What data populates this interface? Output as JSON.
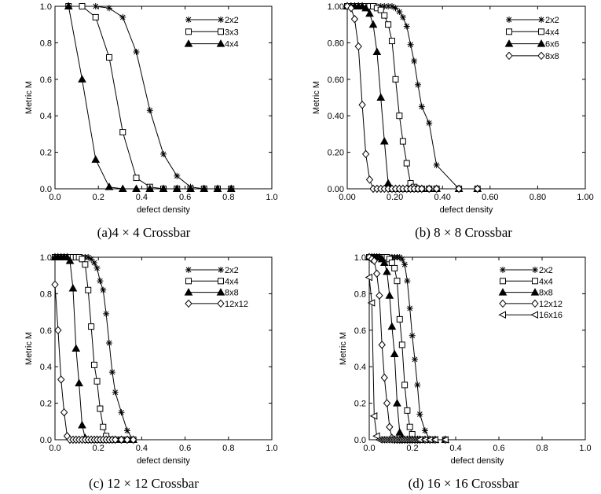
{
  "chart_data": [
    {
      "type": "line",
      "caption": "(a)4 × 4 Crossbar",
      "xlabel": "defect density",
      "ylabel": "Metric M",
      "xlim": [
        0,
        1.0
      ],
      "ylim": [
        0,
        1.0
      ],
      "xticks": [
        "0.0",
        "0.2",
        "0.4",
        "0.6",
        "0.8",
        "1.0"
      ],
      "yticks": [
        "0.0",
        "0.2",
        "0.4",
        "0.6",
        "0.8",
        "1.0"
      ],
      "grid": false,
      "legend": "top-right",
      "series": [
        {
          "name": "2x2",
          "marker": "star",
          "x": [
            0.0625,
            0.125,
            0.1875,
            0.25,
            0.3125,
            0.375,
            0.4375,
            0.5,
            0.5625,
            0.625,
            0.6875,
            0.75,
            0.8125
          ],
          "y": [
            1.0,
            1.0,
            1.0,
            0.99,
            0.94,
            0.75,
            0.43,
            0.19,
            0.07,
            0.01,
            0.0,
            0.0,
            0.0
          ]
        },
        {
          "name": "3x3",
          "marker": "square",
          "x": [
            0.0625,
            0.125,
            0.1875,
            0.25,
            0.3125,
            0.375,
            0.4375,
            0.5,
            0.5625,
            0.625,
            0.6875,
            0.75,
            0.8125
          ],
          "y": [
            1.0,
            1.0,
            0.94,
            0.72,
            0.31,
            0.06,
            0.01,
            0.0,
            0.0,
            0.0,
            0.0,
            0.0,
            0.0
          ]
        },
        {
          "name": "4x4",
          "marker": "triangle",
          "x": [
            0.0625,
            0.125,
            0.1875,
            0.25,
            0.3125,
            0.375,
            0.4375,
            0.5,
            0.5625,
            0.625,
            0.6875,
            0.75,
            0.8125
          ],
          "y": [
            1.0,
            0.6,
            0.16,
            0.01,
            0.0,
            0.0,
            0.0,
            0.0,
            0.0,
            0.0,
            0.0,
            0.0,
            0.0
          ]
        }
      ]
    },
    {
      "type": "line",
      "caption": "(b) 8 × 8 Crossbar",
      "xlabel": "defect density",
      "ylabel": "Metric M",
      "xlim": [
        0,
        1.0
      ],
      "ylim": [
        0,
        1.0
      ],
      "xticks": [
        "0.00",
        "0.20",
        "0.40",
        "0.60",
        "0.80",
        "1.00"
      ],
      "yticks": [
        "0.00",
        "0.20",
        "0.40",
        "0.60",
        "0.80",
        "1.00"
      ],
      "grid": false,
      "legend": "top-right",
      "series": [
        {
          "name": "2x2",
          "marker": "star",
          "x": [
            0.0,
            0.016,
            0.031,
            0.047,
            0.063,
            0.078,
            0.094,
            0.109,
            0.125,
            0.141,
            0.156,
            0.172,
            0.188,
            0.203,
            0.219,
            0.234,
            0.25,
            0.266,
            0.281,
            0.297,
            0.313,
            0.344,
            0.375,
            0.469,
            0.547
          ],
          "y": [
            1.0,
            1.0,
            1.0,
            1.0,
            1.0,
            1.0,
            1.0,
            1.0,
            1.0,
            1.0,
            1.0,
            1.0,
            1.0,
            0.99,
            0.97,
            0.94,
            0.89,
            0.79,
            0.7,
            0.57,
            0.45,
            0.36,
            0.13,
            0.0,
            0.0
          ]
        },
        {
          "name": "4x4",
          "marker": "square",
          "x": [
            0.0,
            0.016,
            0.031,
            0.047,
            0.063,
            0.078,
            0.094,
            0.109,
            0.125,
            0.141,
            0.156,
            0.172,
            0.188,
            0.203,
            0.219,
            0.234,
            0.25,
            0.266,
            0.281,
            0.297,
            0.313,
            0.344,
            0.375,
            0.469,
            0.547
          ],
          "y": [
            1.0,
            1.0,
            1.0,
            1.0,
            1.0,
            1.0,
            1.0,
            1.0,
            0.99,
            0.98,
            0.95,
            0.9,
            0.81,
            0.6,
            0.4,
            0.26,
            0.14,
            0.03,
            0.01,
            0.0,
            0.0,
            0.0,
            0.0,
            0.0,
            0.0
          ]
        },
        {
          "name": "6x6",
          "marker": "triangle",
          "x": [
            0.0,
            0.016,
            0.031,
            0.047,
            0.063,
            0.078,
            0.094,
            0.109,
            0.125,
            0.141,
            0.156,
            0.172,
            0.188,
            0.203,
            0.219,
            0.234,
            0.25,
            0.266,
            0.281,
            0.297,
            0.313,
            0.344,
            0.375,
            0.469,
            0.547
          ],
          "y": [
            1.0,
            1.0,
            1.0,
            1.0,
            1.0,
            0.99,
            0.96,
            0.9,
            0.75,
            0.5,
            0.26,
            0.03,
            0.0,
            0.0,
            0.0,
            0.0,
            0.0,
            0.0,
            0.0,
            0.0,
            0.0,
            0.0,
            0.0,
            0.0,
            0.0
          ]
        },
        {
          "name": "8x8",
          "marker": "diamond",
          "x": [
            0.0,
            0.016,
            0.031,
            0.047,
            0.063,
            0.078,
            0.094,
            0.109,
            0.125,
            0.141,
            0.156,
            0.172,
            0.188,
            0.203,
            0.219,
            0.234,
            0.25,
            0.266,
            0.281,
            0.297,
            0.313,
            0.344,
            0.375,
            0.469,
            0.547
          ],
          "y": [
            1.0,
            0.99,
            0.93,
            0.78,
            0.46,
            0.19,
            0.05,
            0.0,
            0.0,
            0.0,
            0.0,
            0.0,
            0.0,
            0.0,
            0.0,
            0.0,
            0.0,
            0.0,
            0.0,
            0.0,
            0.0,
            0.0,
            0.0,
            0.0,
            0.0
          ]
        }
      ]
    },
    {
      "type": "line",
      "caption": "(c) 12 × 12 Crossbar",
      "xlabel": "defect density",
      "ylabel": "Metric M",
      "xlim": [
        0,
        1.0
      ],
      "ylim": [
        0,
        1.0
      ],
      "xticks": [
        "0.0",
        "0.2",
        "0.4",
        "0.6",
        "0.8",
        "1.0"
      ],
      "yticks": [
        "0.0",
        "0.2",
        "0.4",
        "0.6",
        "0.8",
        "1.0"
      ],
      "grid": false,
      "legend": "top-right",
      "series": [
        {
          "name": "2x2",
          "marker": "star",
          "x": [
            0.0,
            0.014,
            0.028,
            0.042,
            0.056,
            0.069,
            0.083,
            0.097,
            0.111,
            0.125,
            0.139,
            0.153,
            0.167,
            0.181,
            0.194,
            0.208,
            0.222,
            0.236,
            0.25,
            0.264,
            0.278,
            0.306,
            0.333,
            0.361
          ],
          "y": [
            1.0,
            1.0,
            1.0,
            1.0,
            1.0,
            1.0,
            1.0,
            1.0,
            1.0,
            1.0,
            1.0,
            1.0,
            0.99,
            0.97,
            0.94,
            0.87,
            0.82,
            0.69,
            0.53,
            0.37,
            0.26,
            0.15,
            0.05,
            0.0
          ]
        },
        {
          "name": "4x4",
          "marker": "square",
          "x": [
            0.0,
            0.014,
            0.028,
            0.042,
            0.056,
            0.069,
            0.083,
            0.097,
            0.111,
            0.125,
            0.139,
            0.153,
            0.167,
            0.181,
            0.194,
            0.208,
            0.222,
            0.236,
            0.25,
            0.264,
            0.278,
            0.306,
            0.333,
            0.361
          ],
          "y": [
            1.0,
            1.0,
            1.0,
            1.0,
            1.0,
            1.0,
            1.0,
            1.0,
            1.0,
            0.99,
            0.96,
            0.82,
            0.62,
            0.41,
            0.32,
            0.17,
            0.07,
            0.02,
            0.0,
            0.0,
            0.0,
            0.0,
            0.0,
            0.0
          ]
        },
        {
          "name": "8x8",
          "marker": "triangle",
          "x": [
            0.0,
            0.014,
            0.028,
            0.042,
            0.056,
            0.069,
            0.083,
            0.097,
            0.111,
            0.125,
            0.139,
            0.153,
            0.167,
            0.181,
            0.194,
            0.208,
            0.222,
            0.236,
            0.25,
            0.264,
            0.278,
            0.306,
            0.333,
            0.361
          ],
          "y": [
            1.0,
            1.0,
            1.0,
            1.0,
            1.0,
            0.98,
            0.83,
            0.5,
            0.31,
            0.08,
            0.01,
            0.0,
            0.0,
            0.0,
            0.0,
            0.0,
            0.0,
            0.0,
            0.0,
            0.0,
            0.0,
            0.0,
            0.0,
            0.0
          ]
        },
        {
          "name": "12x12",
          "marker": "diamond",
          "x": [
            0.0,
            0.014,
            0.028,
            0.042,
            0.056,
            0.069,
            0.083,
            0.097,
            0.111,
            0.125,
            0.139,
            0.153,
            0.167,
            0.181,
            0.194,
            0.208,
            0.222,
            0.236,
            0.25,
            0.264,
            0.278,
            0.306,
            0.333,
            0.361
          ],
          "y": [
            0.85,
            0.6,
            0.33,
            0.15,
            0.02,
            0.0,
            0.0,
            0.0,
            0.0,
            0.0,
            0.0,
            0.0,
            0.0,
            0.0,
            0.0,
            0.0,
            0.0,
            0.0,
            0.0,
            0.0,
            0.0,
            0.0,
            0.0,
            0.0
          ]
        }
      ]
    },
    {
      "type": "line",
      "caption": "(d) 16 × 16 Crossbar",
      "xlabel": "defect density",
      "ylabel": "Metric M",
      "xlim": [
        0,
        1.0
      ],
      "ylim": [
        0,
        1.0
      ],
      "xticks": [
        "0.0",
        "0.2",
        "0.4",
        "0.6",
        "0.8",
        "1.0"
      ],
      "yticks": [
        "0.0",
        "0.2",
        "0.4",
        "0.6",
        "0.8",
        "1.0"
      ],
      "grid": false,
      "legend": "top-right",
      "series": [
        {
          "name": "2x2",
          "marker": "star",
          "x": [
            0.0,
            0.012,
            0.023,
            0.035,
            0.047,
            0.059,
            0.07,
            0.082,
            0.094,
            0.105,
            0.117,
            0.129,
            0.141,
            0.152,
            0.164,
            0.176,
            0.188,
            0.199,
            0.211,
            0.223,
            0.234,
            0.258,
            0.281,
            0.305,
            0.352
          ],
          "y": [
            1.0,
            1.0,
            1.0,
            1.0,
            1.0,
            1.0,
            1.0,
            1.0,
            1.0,
            1.0,
            1.0,
            1.0,
            1.0,
            0.99,
            0.96,
            0.87,
            0.72,
            0.57,
            0.44,
            0.3,
            0.14,
            0.05,
            0.0,
            0.0,
            0.0
          ]
        },
        {
          "name": "4x4",
          "marker": "square",
          "x": [
            0.0,
            0.012,
            0.023,
            0.035,
            0.047,
            0.059,
            0.07,
            0.082,
            0.094,
            0.105,
            0.117,
            0.129,
            0.141,
            0.152,
            0.164,
            0.176,
            0.188,
            0.199,
            0.211,
            0.223,
            0.234,
            0.258,
            0.281,
            0.305,
            0.352
          ],
          "y": [
            1.0,
            1.0,
            1.0,
            1.0,
            1.0,
            1.0,
            1.0,
            1.0,
            0.99,
            0.97,
            0.94,
            0.87,
            0.66,
            0.52,
            0.3,
            0.16,
            0.07,
            0.03,
            0.0,
            0.0,
            0.0,
            0.0,
            0.0,
            0.0,
            0.0
          ]
        },
        {
          "name": "8x8",
          "marker": "triangle",
          "x": [
            0.0,
            0.012,
            0.023,
            0.035,
            0.047,
            0.059,
            0.07,
            0.082,
            0.094,
            0.105,
            0.117,
            0.129,
            0.141,
            0.152,
            0.164,
            0.176,
            0.188,
            0.199,
            0.211,
            0.223,
            0.234,
            0.258,
            0.281,
            0.305,
            0.352
          ],
          "y": [
            1.0,
            1.0,
            1.0,
            1.0,
            1.0,
            0.99,
            0.97,
            0.92,
            0.79,
            0.62,
            0.47,
            0.2,
            0.04,
            0.01,
            0.0,
            0.0,
            0.0,
            0.0,
            0.0,
            0.0,
            0.0,
            0.0,
            0.0,
            0.0,
            0.0
          ]
        },
        {
          "name": "12x12",
          "marker": "diamond",
          "x": [
            0.0,
            0.012,
            0.023,
            0.035,
            0.047,
            0.059,
            0.07,
            0.082,
            0.094,
            0.105,
            0.117,
            0.129,
            0.141,
            0.152,
            0.164,
            0.176,
            0.188,
            0.199,
            0.211,
            0.223,
            0.234,
            0.258,
            0.281,
            0.305,
            0.352
          ],
          "y": [
            1.0,
            0.99,
            0.98,
            0.91,
            0.79,
            0.52,
            0.34,
            0.2,
            0.07,
            0.01,
            0.0,
            0.0,
            0.0,
            0.0,
            0.0,
            0.0,
            0.0,
            0.0,
            0.0,
            0.0,
            0.0,
            0.0,
            0.0,
            0.0,
            0.0
          ]
        },
        {
          "name": "16x16",
          "marker": "tri-left",
          "x": [
            0.0,
            0.012,
            0.023,
            0.035,
            0.047,
            0.059,
            0.07,
            0.082,
            0.094,
            0.105,
            0.117,
            0.129,
            0.141,
            0.152,
            0.164,
            0.176,
            0.188,
            0.199,
            0.211,
            0.223,
            0.234,
            0.258,
            0.281,
            0.305,
            0.352
          ],
          "y": [
            0.89,
            0.75,
            0.13,
            0.02,
            0.0,
            0.0,
            0.0,
            0.0,
            0.0,
            0.0,
            0.0,
            0.0,
            0.0,
            0.0,
            0.0,
            0.0,
            0.0,
            0.0,
            0.0,
            0.0,
            0.0,
            0.0,
            0.0,
            0.0,
            0.0
          ]
        }
      ]
    }
  ]
}
